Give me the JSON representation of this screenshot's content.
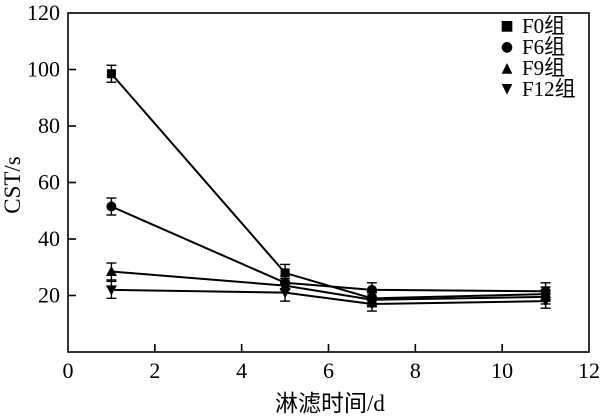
{
  "figure": {
    "background": "#ffffff",
    "ink_color": "#000000"
  },
  "chart_data": {
    "type": "line",
    "title": "",
    "xlabel": "淋滤时间/d",
    "ylabel": "CST/s",
    "xlim": [
      0,
      12
    ],
    "ylim": [
      0,
      120
    ],
    "xticks": [
      0,
      2,
      4,
      6,
      8,
      10,
      12
    ],
    "yticks": [
      20,
      40,
      60,
      80,
      100,
      120
    ],
    "grid": false,
    "legend_position": "top-right-inside",
    "x": [
      1,
      5,
      7,
      11
    ],
    "series": [
      {
        "name": "F0组",
        "marker": "square",
        "marker_glyph": "■",
        "color": "#000000",
        "values": [
          98.5,
          28,
          19,
          20.5
        ],
        "errors": [
          3,
          3,
          2.5,
          2.5
        ]
      },
      {
        "name": "F6组",
        "marker": "circle",
        "marker_glyph": "●",
        "color": "#000000",
        "values": [
          51.5,
          24.5,
          22,
          21.5
        ],
        "errors": [
          3,
          2.5,
          2.5,
          3
        ]
      },
      {
        "name": "F9组",
        "marker": "triangle-up",
        "marker_glyph": "▲",
        "color": "#000000",
        "values": [
          28.5,
          23.5,
          18.5,
          19.5
        ],
        "errors": [
          3,
          2.5,
          2.5,
          2.5
        ]
      },
      {
        "name": "F12组",
        "marker": "triangle-down",
        "marker_glyph": "▼",
        "color": "#000000",
        "values": [
          22,
          21,
          17,
          18
        ],
        "errors": [
          3,
          3,
          2.5,
          2.5
        ]
      }
    ]
  }
}
